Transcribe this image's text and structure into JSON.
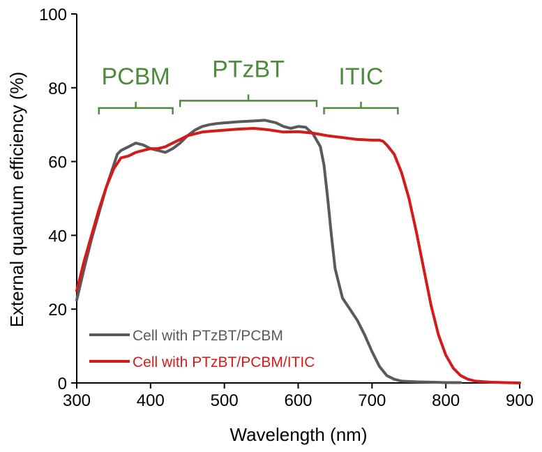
{
  "chart_data": {
    "type": "line",
    "xlabel": "Wavelength (nm)",
    "ylabel": "External quantum efficiency (%)",
    "xlim": [
      300,
      900
    ],
    "ylim": [
      0,
      100
    ],
    "xticks": [
      "300",
      "400",
      "500",
      "600",
      "700",
      "800",
      "900"
    ],
    "yticks": [
      "0",
      "20",
      "40",
      "60",
      "80",
      "100"
    ],
    "grid": false,
    "legend_position": "bottom-left",
    "region_color": "#4e8a3e",
    "region_labels": [
      {
        "text": "PCBM",
        "x_start": 330,
        "x_end": 430,
        "y": 74.5
      },
      {
        "text": "PTzBT",
        "x_start": 440,
        "x_end": 625,
        "y": 76.5
      },
      {
        "text": "ITIC",
        "x_start": 635,
        "x_end": 735,
        "y": 74.5
      }
    ],
    "series": [
      {
        "name": "Cell with PTzBT/PCBM",
        "color": "#5a5a5e",
        "x": [
          300,
          310,
          320,
          330,
          340,
          350,
          355,
          360,
          370,
          380,
          390,
          400,
          410,
          420,
          430,
          440,
          450,
          460,
          470,
          480,
          490,
          500,
          520,
          540,
          555,
          570,
          580,
          590,
          600,
          610,
          620,
          630,
          635,
          640,
          645,
          650,
          655,
          660,
          670,
          680,
          690,
          700,
          710,
          720,
          730,
          740,
          760,
          780,
          800,
          820
        ],
        "y": [
          22.5,
          31,
          39,
          46,
          53,
          59,
          62,
          63,
          64,
          65,
          64.5,
          63.5,
          63,
          62.5,
          63.5,
          65,
          67,
          68.5,
          69.5,
          70,
          70.3,
          70.5,
          70.8,
          71,
          71.2,
          70.5,
          69.5,
          69,
          69.5,
          69.3,
          67.5,
          64,
          59,
          50,
          40,
          31,
          27,
          23,
          20,
          17,
          13,
          8.5,
          4.5,
          2,
          1,
          0.5,
          0.3,
          0.2,
          0.1,
          0.1
        ]
      },
      {
        "name": "Cell with PTzBT/PCBM/ITIC",
        "color": "#d51a1a",
        "x": [
          300,
          310,
          320,
          330,
          340,
          350,
          360,
          370,
          380,
          390,
          400,
          410,
          420,
          430,
          440,
          450,
          460,
          470,
          480,
          500,
          520,
          540,
          560,
          580,
          600,
          620,
          640,
          660,
          680,
          700,
          710,
          715,
          720,
          730,
          740,
          750,
          760,
          770,
          780,
          790,
          800,
          810,
          820,
          830,
          840,
          860,
          880,
          900
        ],
        "y": [
          25,
          33,
          40,
          47,
          53,
          58,
          61,
          61.5,
          62.5,
          63,
          63.5,
          63.5,
          64,
          65,
          66,
          67,
          67.5,
          68,
          68.2,
          68.5,
          68.8,
          69,
          68.6,
          68,
          68.1,
          67.7,
          67,
          66.5,
          66,
          65.8,
          65.8,
          65.5,
          64.5,
          62,
          57,
          50,
          41,
          31,
          21,
          13,
          7.5,
          4,
          2,
          1,
          0.5,
          0.2,
          0.1,
          0
        ]
      }
    ]
  }
}
